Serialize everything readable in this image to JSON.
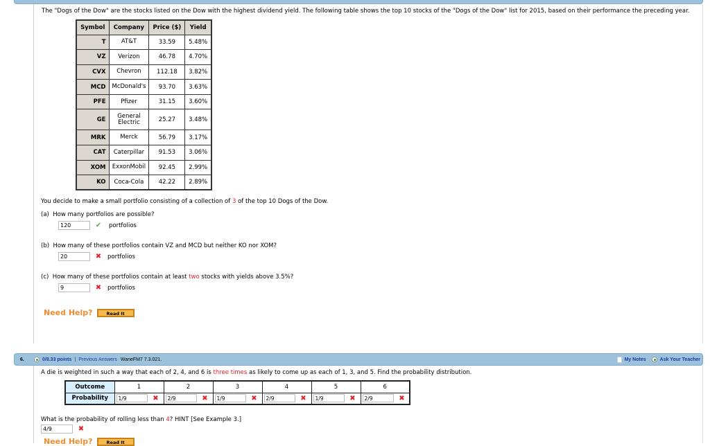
{
  "intro": "The \"Dogs of the Dow\" are the stocks listed on the Dow with the highest dividend yield. The following table shows the top 10 stocks of the \"Dogs of the Dow\" list for 2015, based on their performance the preceding year.",
  "table": {
    "headers": [
      "Symbol",
      "Company",
      "Price ($)",
      "Yield"
    ],
    "rows": [
      [
        "T",
        "AT&T",
        "33.59",
        "5.48%"
      ],
      [
        "VZ",
        "Verizon",
        "46.78",
        "4.70%"
      ],
      [
        "CVX",
        "Chevron",
        "112.18",
        "3.82%"
      ],
      [
        "MCD",
        "McDonald's",
        "93.70",
        "3.63%"
      ],
      [
        "PFE",
        "Pfizer",
        "31.15",
        "3.60%"
      ],
      [
        "GE",
        "General Electric",
        "25.27",
        "3.48%"
      ],
      [
        "MRK",
        "Merck",
        "56.79",
        "3.17%"
      ],
      [
        "CAT",
        "Caterpillar",
        "91.53",
        "3.06%"
      ],
      [
        "XOM",
        "ExxonMobil",
        "92.45",
        "2.99%"
      ],
      [
        "KO",
        "Coca-Cola",
        "42.22",
        "2.89%"
      ]
    ]
  },
  "portfolio": {
    "pre": "You decide to make a small portfolio consisting of a collection of ",
    "num": "3",
    "post": " of the top 10 Dogs of the Dow."
  },
  "parts": [
    {
      "label": "(a)",
      "question": "How many portfolios are possible?",
      "value": "120",
      "status": "correct",
      "unit": "portfolios"
    },
    {
      "label": "(b)",
      "question": "How many of these portfolios contain VZ and MCD but neither KO nor XOM?",
      "value": "20",
      "status": "incorrect",
      "unit": "portfolios"
    },
    {
      "label": "(c)",
      "question_pre": "How many of these portfolios contain at least ",
      "question_hl": "two",
      "question_post": " stocks with yields above 3.5%?",
      "value": "9",
      "status": "incorrect",
      "unit": "portfolios"
    }
  ],
  "help": {
    "label": "Need Help?",
    "button": "Read It"
  },
  "q6": {
    "number": "6.",
    "points": "0/8.33 points",
    "separator": "|",
    "prev": "Previous Answers",
    "code": "WaneFM7 7.3.021.",
    "notes": "My Notes",
    "ask": "Ask Your Teacher",
    "text_pre": "A die is weighted in such a way that each of 2, 4, and 6 is ",
    "text_hl": "three times",
    "text_post": " as likely to come up as each of 1, 3, and 5. Find the probability distribution.",
    "row_outcome": "Outcome",
    "row_prob": "Probability",
    "outcomes": [
      "1",
      "2",
      "3",
      "4",
      "5",
      "6"
    ],
    "answers": [
      "1/9",
      "2/9",
      "1/9",
      "2/9",
      "1/9",
      "2/9"
    ],
    "q2_pre": "What is the probability of rolling less than ",
    "q2_hl": "4",
    "q2_post": "? HINT [See Example 3.]",
    "q2_value": "4/9"
  },
  "colors": {
    "header_bar": "#9dc3dc",
    "error": "#e2232b",
    "correct": "#5aa84a",
    "help": "#f08c2e"
  }
}
